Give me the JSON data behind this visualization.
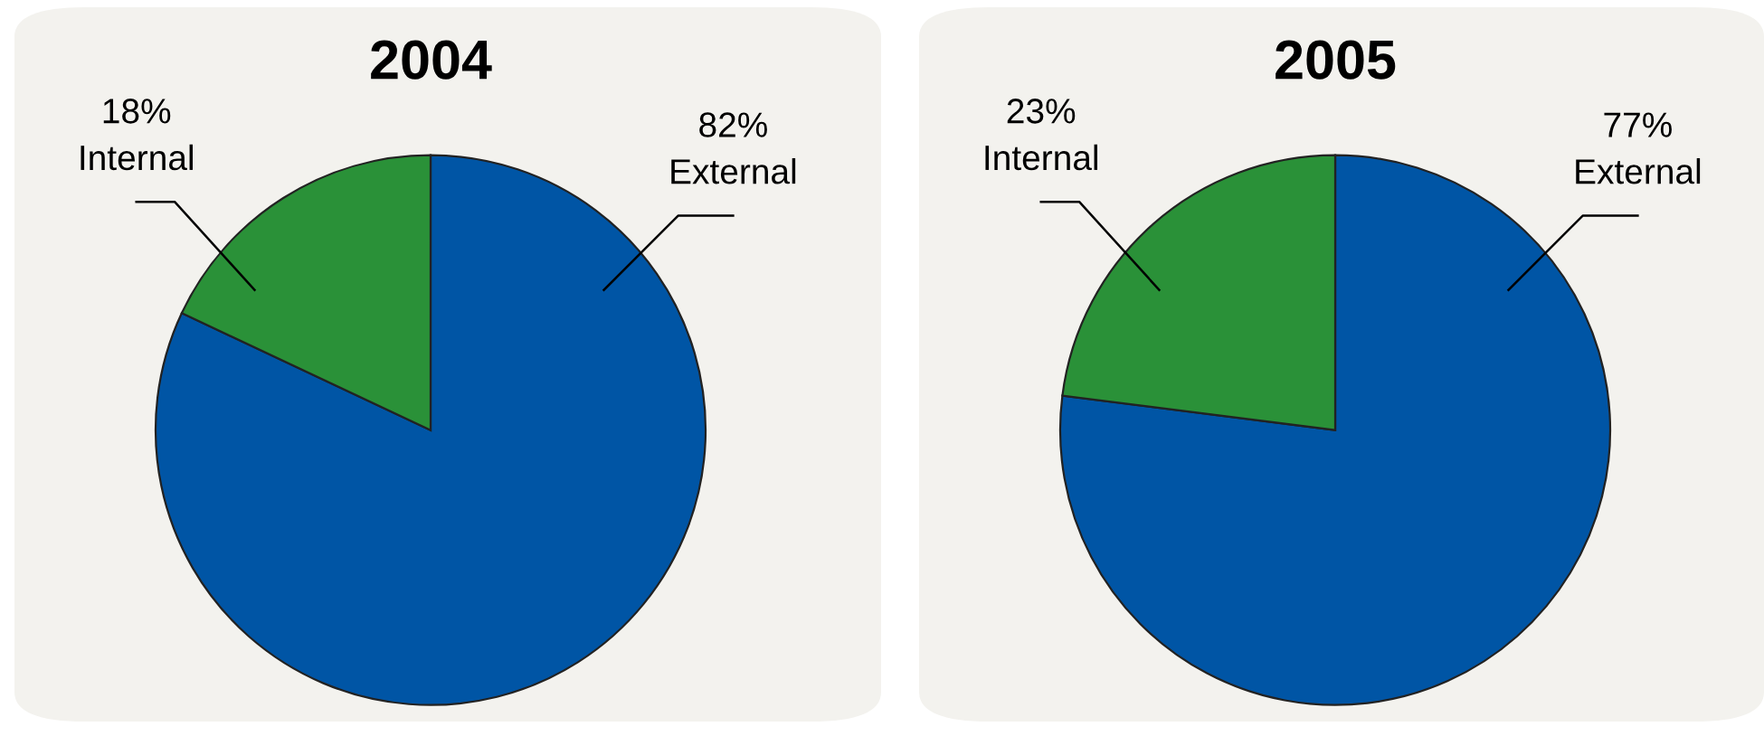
{
  "chart_data": [
    {
      "type": "pie",
      "title": "2004",
      "categories": [
        "External",
        "Internal"
      ],
      "values": [
        82,
        18
      ],
      "value_labels": [
        "82%",
        "18%"
      ],
      "colors": [
        "#0055a5",
        "#2a9138"
      ]
    },
    {
      "type": "pie",
      "title": "2005",
      "categories": [
        "External",
        "Internal"
      ],
      "values": [
        77,
        23
      ],
      "value_labels": [
        "77%",
        "23%"
      ],
      "colors": [
        "#0055a5",
        "#2a9138"
      ]
    }
  ]
}
